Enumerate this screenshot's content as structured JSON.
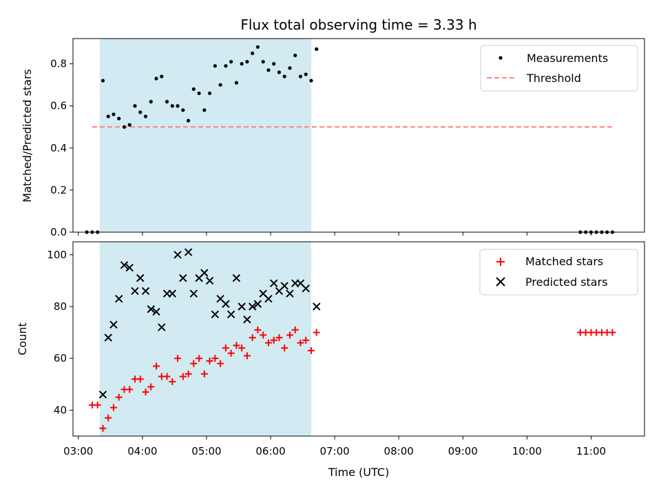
{
  "chart_data": [
    {
      "type": "scatter",
      "title": "Flux total observing time = 3.33 h",
      "xlabel": "",
      "ylabel": "Matched/Predicted stars",
      "ylim": [
        0,
        0.92
      ],
      "yticks": [
        0.0,
        0.2,
        0.4,
        0.6,
        0.8
      ],
      "ytick_labels": [
        "0.0",
        "0.2",
        "0.4",
        "0.6",
        "0.8"
      ],
      "legend_position": "top-right",
      "shaded_span": {
        "x_start": "03:20",
        "x_end": "06:38",
        "color": "#add8e6"
      },
      "series": [
        {
          "name": "Measurements",
          "kind": "scatter",
          "marker": "dot",
          "color": "#000000",
          "points": [
            [
              "03:08",
              0.0
            ],
            [
              "03:13",
              0.0
            ],
            [
              "03:18",
              0.0
            ],
            [
              "03:23",
              0.72
            ],
            [
              "03:28",
              0.55
            ],
            [
              "03:33",
              0.56
            ],
            [
              "03:38",
              0.54
            ],
            [
              "03:43",
              0.5
            ],
            [
              "03:48",
              0.51
            ],
            [
              "03:53",
              0.6
            ],
            [
              "03:58",
              0.57
            ],
            [
              "04:03",
              0.55
            ],
            [
              "04:08",
              0.62
            ],
            [
              "04:13",
              0.73
            ],
            [
              "04:18",
              0.74
            ],
            [
              "04:23",
              0.62
            ],
            [
              "04:28",
              0.6
            ],
            [
              "04:33",
              0.6
            ],
            [
              "04:38",
              0.58
            ],
            [
              "04:43",
              0.53
            ],
            [
              "04:48",
              0.68
            ],
            [
              "04:53",
              0.66
            ],
            [
              "04:58",
              0.58
            ],
            [
              "05:03",
              0.66
            ],
            [
              "05:08",
              0.79
            ],
            [
              "05:13",
              0.7
            ],
            [
              "05:18",
              0.79
            ],
            [
              "05:23",
              0.81
            ],
            [
              "05:28",
              0.71
            ],
            [
              "05:33",
              0.8
            ],
            [
              "05:38",
              0.81
            ],
            [
              "05:43",
              0.85
            ],
            [
              "05:48",
              0.88
            ],
            [
              "05:53",
              0.81
            ],
            [
              "05:58",
              0.77
            ],
            [
              "06:03",
              0.8
            ],
            [
              "06:08",
              0.76
            ],
            [
              "06:13",
              0.74
            ],
            [
              "06:18",
              0.78
            ],
            [
              "06:23",
              0.84
            ],
            [
              "06:28",
              0.74
            ],
            [
              "06:33",
              0.75
            ],
            [
              "06:38",
              0.72
            ],
            [
              "06:43",
              0.87
            ],
            [
              "10:50",
              0.0
            ],
            [
              "10:55",
              0.0
            ],
            [
              "11:00",
              0.0
            ],
            [
              "11:05",
              0.0
            ],
            [
              "11:10",
              0.0
            ],
            [
              "11:15",
              0.0
            ],
            [
              "11:20",
              0.0
            ]
          ]
        },
        {
          "name": "Threshold",
          "kind": "hline",
          "style": "dashed",
          "color": "#ff7f7f",
          "y": 0.5,
          "x_start": "03:13",
          "x_end": "11:20"
        }
      ]
    },
    {
      "type": "scatter",
      "title": "",
      "xlabel": "Time (UTC)",
      "ylabel": "Count",
      "ylim": [
        30,
        105
      ],
      "yticks": [
        40,
        60,
        80,
        100
      ],
      "ytick_labels": [
        "40",
        "60",
        "80",
        "100"
      ],
      "xlim": [
        "02:55",
        "11:50"
      ],
      "xticks": [
        "03:00",
        "04:00",
        "05:00",
        "06:00",
        "07:00",
        "08:00",
        "09:00",
        "10:00",
        "11:00"
      ],
      "xtick_labels": [
        "03:00",
        "04:00",
        "05:00",
        "06:00",
        "07:00",
        "08:00",
        "09:00",
        "10:00",
        "11:00"
      ],
      "legend_position": "top-right",
      "shaded_span": {
        "x_start": "03:20",
        "x_end": "06:38",
        "color": "#add8e6"
      },
      "series": [
        {
          "name": "Matched stars",
          "kind": "scatter",
          "marker": "plus",
          "color": "#ff0000",
          "points": [
            [
              "03:13",
              42
            ],
            [
              "03:18",
              42
            ],
            [
              "03:23",
              33
            ],
            [
              "03:28",
              37
            ],
            [
              "03:33",
              41
            ],
            [
              "03:38",
              45
            ],
            [
              "03:43",
              48
            ],
            [
              "03:48",
              48
            ],
            [
              "03:53",
              52
            ],
            [
              "03:58",
              52
            ],
            [
              "04:03",
              47
            ],
            [
              "04:08",
              49
            ],
            [
              "04:13",
              57
            ],
            [
              "04:18",
              53
            ],
            [
              "04:23",
              53
            ],
            [
              "04:28",
              51
            ],
            [
              "04:33",
              60
            ],
            [
              "04:38",
              53
            ],
            [
              "04:43",
              54
            ],
            [
              "04:48",
              58
            ],
            [
              "04:53",
              60
            ],
            [
              "04:58",
              54
            ],
            [
              "05:03",
              59
            ],
            [
              "05:08",
              60
            ],
            [
              "05:13",
              58
            ],
            [
              "05:18",
              64
            ],
            [
              "05:23",
              62
            ],
            [
              "05:28",
              65
            ],
            [
              "05:33",
              64
            ],
            [
              "05:38",
              61
            ],
            [
              "05:43",
              68
            ],
            [
              "05:48",
              71
            ],
            [
              "05:53",
              69
            ],
            [
              "05:58",
              66
            ],
            [
              "06:03",
              67
            ],
            [
              "06:08",
              68
            ],
            [
              "06:13",
              64
            ],
            [
              "06:18",
              69
            ],
            [
              "06:23",
              71
            ],
            [
              "06:28",
              66
            ],
            [
              "06:33",
              67
            ],
            [
              "06:38",
              63
            ],
            [
              "06:43",
              70
            ],
            [
              "10:50",
              70
            ],
            [
              "10:55",
              70
            ],
            [
              "11:00",
              70
            ],
            [
              "11:05",
              70
            ],
            [
              "11:10",
              70
            ],
            [
              "11:15",
              70
            ],
            [
              "11:20",
              70
            ]
          ]
        },
        {
          "name": "Predicted stars",
          "kind": "scatter",
          "marker": "x",
          "color": "#000000",
          "points": [
            [
              "03:23",
              46
            ],
            [
              "03:28",
              68
            ],
            [
              "03:33",
              73
            ],
            [
              "03:38",
              83
            ],
            [
              "03:43",
              96
            ],
            [
              "03:48",
              95
            ],
            [
              "03:53",
              86
            ],
            [
              "03:58",
              91
            ],
            [
              "04:03",
              86
            ],
            [
              "04:08",
              79
            ],
            [
              "04:13",
              78
            ],
            [
              "04:18",
              72
            ],
            [
              "04:23",
              85
            ],
            [
              "04:28",
              85
            ],
            [
              "04:33",
              100
            ],
            [
              "04:38",
              91
            ],
            [
              "04:43",
              101
            ],
            [
              "04:48",
              85
            ],
            [
              "04:53",
              91
            ],
            [
              "04:58",
              93
            ],
            [
              "05:03",
              90
            ],
            [
              "05:08",
              77
            ],
            [
              "05:13",
              83
            ],
            [
              "05:18",
              81
            ],
            [
              "05:23",
              77
            ],
            [
              "05:28",
              91
            ],
            [
              "05:33",
              80
            ],
            [
              "05:38",
              75
            ],
            [
              "05:43",
              80
            ],
            [
              "05:48",
              81
            ],
            [
              "05:53",
              85
            ],
            [
              "05:58",
              83
            ],
            [
              "06:03",
              89
            ],
            [
              "06:08",
              86
            ],
            [
              "06:13",
              88
            ],
            [
              "06:18",
              85
            ],
            [
              "06:23",
              89
            ],
            [
              "06:28",
              89
            ],
            [
              "06:33",
              87
            ],
            [
              "06:43",
              80
            ]
          ]
        }
      ]
    }
  ]
}
